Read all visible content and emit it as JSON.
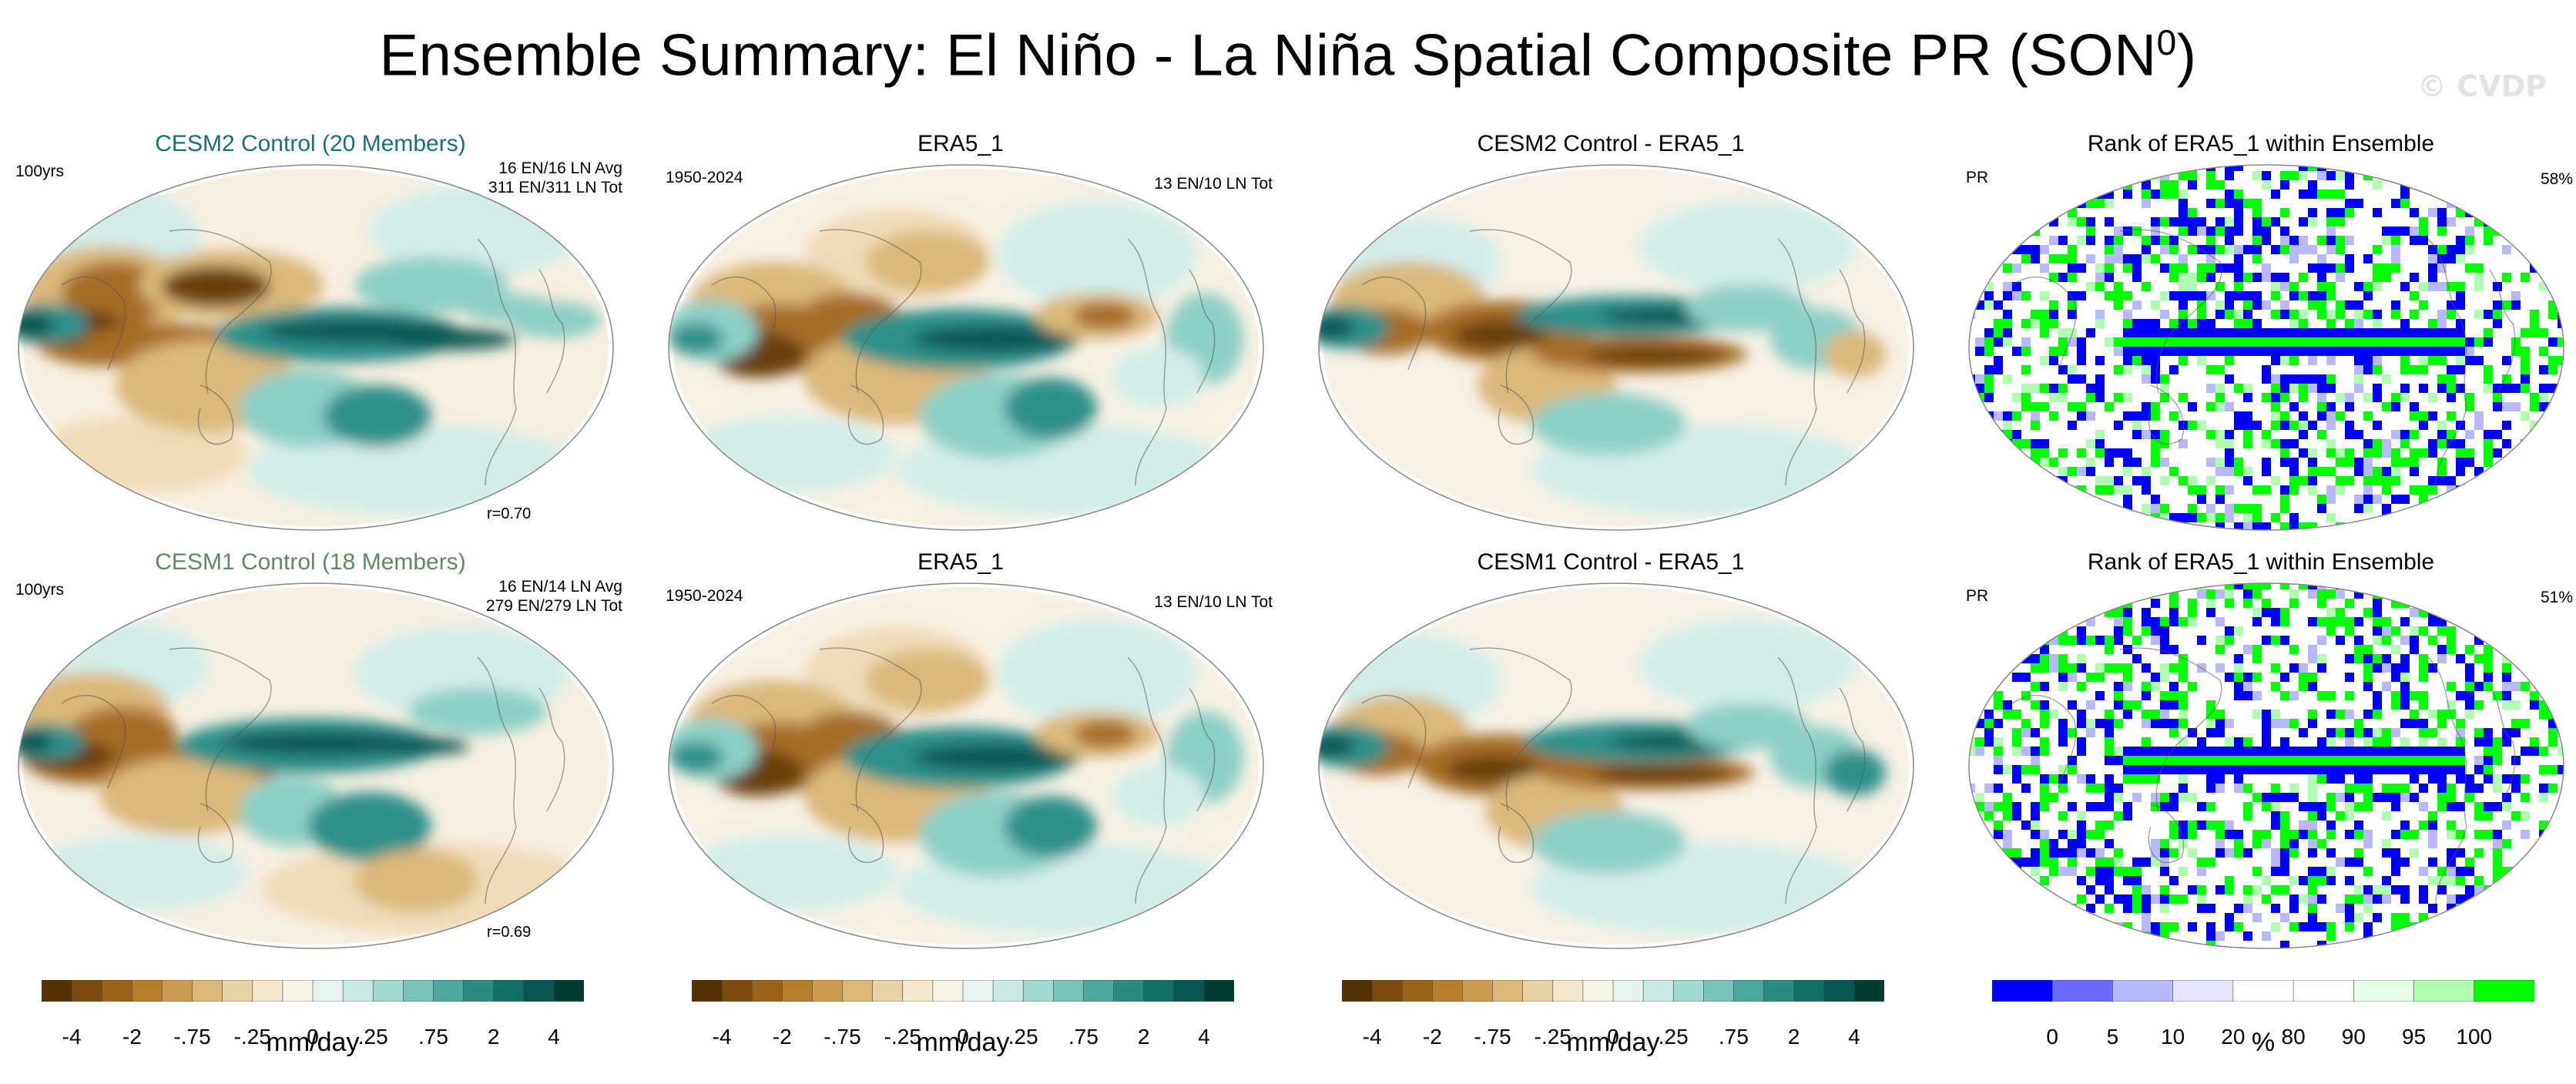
{
  "title": "Ensemble Summary: El Niño - La Niña Spatial Composite PR (SON",
  "title_sup": "0",
  "title_close": ")",
  "watermark": "© CVDP",
  "colors": {
    "teal_title": "#17707f",
    "green_title": "#5d8a62",
    "rank_low": "#0000ff",
    "rank_high": "#00ff00"
  },
  "panels": [
    {
      "title": "CESM2 Control (20 Members)",
      "left_text": "100yrs",
      "right_line1": "16 EN/16 LN Avg",
      "right_line2": "311 EN/311 LN Tot",
      "r": "r=0.70"
    },
    {
      "title": "ERA5_1",
      "left_text": "1950-2024",
      "right_line1": "13 EN/10 LN Tot",
      "right_line2": "",
      "r": ""
    },
    {
      "title": "CESM2 Control - ERA5_1",
      "left_text": "",
      "right_line1": "",
      "right_line2": "",
      "r": ""
    },
    {
      "title": "Rank of ERA5_1 within Ensemble",
      "left_text": "PR",
      "right_line1": "58%",
      "right_line2": "",
      "r": ""
    },
    {
      "title": "CESM1 Control (18 Members)",
      "left_text": "100yrs",
      "right_line1": "16 EN/14 LN Avg",
      "right_line2": "279 EN/279 LN Tot",
      "r": "r=0.69"
    },
    {
      "title": "ERA5_1",
      "left_text": "1950-2024",
      "right_line1": "13 EN/10 LN Tot",
      "right_line2": "",
      "r": ""
    },
    {
      "title": "CESM1 Control - ERA5_1",
      "left_text": "",
      "right_line1": "",
      "right_line2": "",
      "r": ""
    },
    {
      "title": "Rank of ERA5_1 within Ensemble",
      "left_text": "PR",
      "right_line1": "51%",
      "right_line2": "",
      "r": ""
    }
  ],
  "colorbar_pr": {
    "ticks": [
      "-4",
      "-2",
      "-.75",
      "-.25",
      "0",
      ".25",
      ".75",
      "2",
      "4"
    ],
    "label": "mm/day",
    "colors": [
      "#543005",
      "#7a4a0e",
      "#9b6119",
      "#b67d2c",
      "#cc9b53",
      "#dbb878",
      "#e8d3a6",
      "#f3e8cc",
      "#f7f2e6",
      "#e6f3f0",
      "#c8e9e4",
      "#a2d9d1",
      "#77c3b8",
      "#4ea79c",
      "#2c8a81",
      "#136e66",
      "#07564f",
      "#003c30"
    ]
  },
  "colorbar_rank": {
    "ticks": [
      "0",
      "5",
      "10",
      "20",
      "80",
      "90",
      "95",
      "100"
    ],
    "label": "%",
    "colors": [
      "#0000ff",
      "#6a6aff",
      "#b8b8ff",
      "#e4e4ff",
      "#ffffff",
      "#ffffff",
      "#e6ffe6",
      "#b0ffb0",
      "#00ff00"
    ]
  }
}
